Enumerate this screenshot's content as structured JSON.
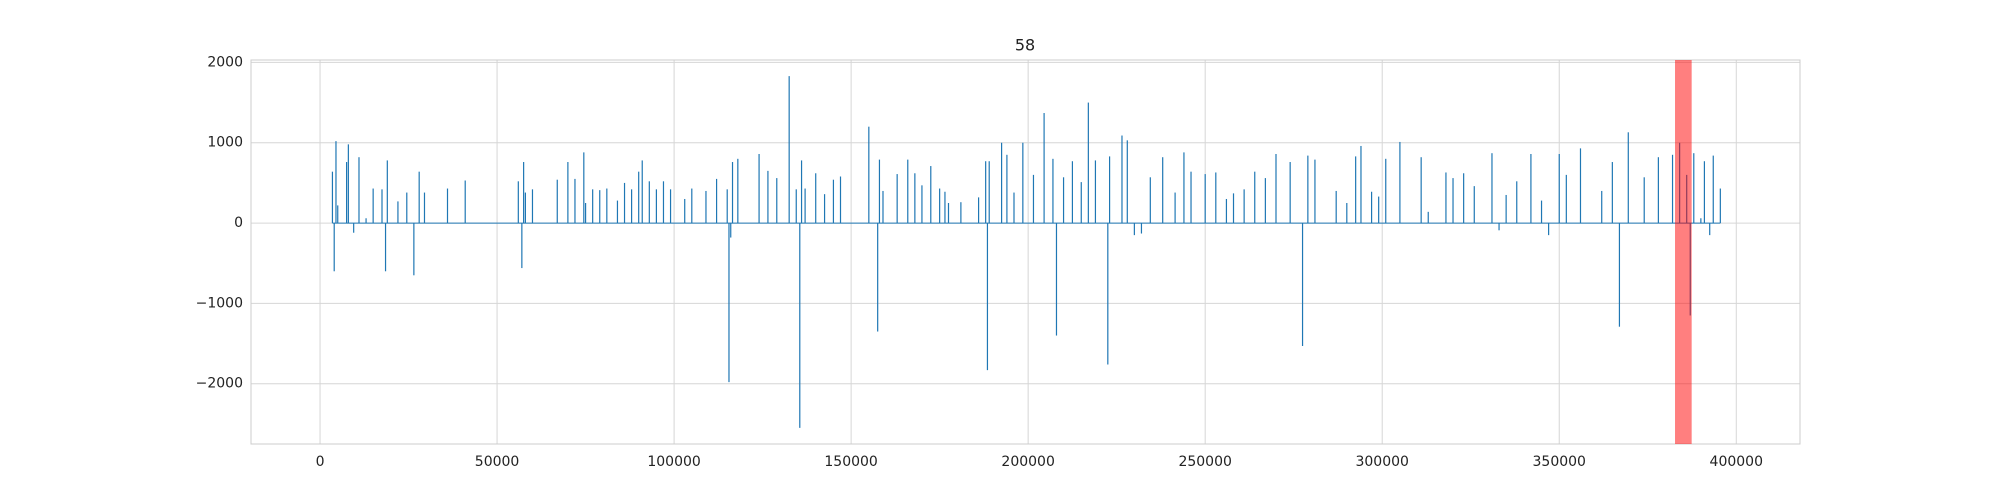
{
  "chart_data": {
    "type": "stem",
    "title": "58",
    "x": [
      3500,
      4000,
      4500,
      5000,
      7500,
      8000,
      9500,
      11000,
      13000,
      15000,
      17500,
      18500,
      19000,
      22000,
      24500,
      26500,
      28000,
      29500,
      36000,
      41000,
      56000,
      57000,
      57500,
      58000,
      60000,
      67000,
      70000,
      72000,
      74500,
      75000,
      77000,
      79000,
      81000,
      84000,
      86000,
      88000,
      90000,
      91000,
      93000,
      95000,
      97000,
      99000,
      103000,
      105000,
      109000,
      112000,
      115000,
      115500,
      116000,
      116500,
      118000,
      124000,
      126500,
      129000,
      132500,
      134500,
      135500,
      136000,
      137000,
      140000,
      142500,
      145000,
      147000,
      155000,
      157500,
      158000,
      159000,
      163000,
      166000,
      168000,
      170000,
      172500,
      175000,
      176500,
      177500,
      181000,
      186000,
      188000,
      188500,
      189000,
      192500,
      194000,
      196000,
      198500,
      201500,
      204500,
      207000,
      208000,
      210000,
      212500,
      215000,
      217000,
      219000,
      222500,
      223000,
      226500,
      228000,
      230000,
      232000,
      234500,
      238000,
      241500,
      244000,
      246000,
      250000,
      253000,
      256000,
      258000,
      261000,
      264000,
      267000,
      270000,
      274000,
      277500,
      279000,
      281000,
      287000,
      290000,
      292500,
      294000,
      297000,
      299000,
      301000,
      305000,
      311000,
      313000,
      318000,
      320000,
      323000,
      326000,
      331000,
      333000,
      335000,
      338000,
      342000,
      345000,
      347000,
      350000,
      352000,
      356000,
      362000,
      365000,
      367000,
      369500,
      374000,
      378000,
      382000,
      384000,
      386000,
      387000,
      388000,
      390000,
      391000,
      392500,
      393500,
      395500
    ],
    "values": [
      640,
      -600,
      1020,
      220,
      760,
      980,
      -120,
      820,
      60,
      430,
      420,
      -600,
      780,
      270,
      380,
      -650,
      640,
      380,
      430,
      530,
      520,
      -560,
      760,
      380,
      420,
      540,
      760,
      550,
      880,
      250,
      420,
      410,
      430,
      280,
      500,
      420,
      640,
      780,
      520,
      420,
      520,
      420,
      300,
      430,
      400,
      550,
      420,
      -1980,
      -180,
      760,
      800,
      860,
      650,
      560,
      1830,
      420,
      -2550,
      780,
      430,
      620,
      360,
      540,
      580,
      1200,
      -1350,
      790,
      400,
      610,
      790,
      620,
      470,
      710,
      430,
      390,
      250,
      260,
      320,
      770,
      -1830,
      770,
      1000,
      850,
      380,
      1000,
      600,
      1370,
      800,
      -1400,
      570,
      770,
      510,
      1500,
      780,
      -1760,
      830,
      1090,
      1030,
      -150,
      -130,
      570,
      820,
      380,
      880,
      640,
      610,
      630,
      300,
      370,
      420,
      640,
      560,
      860,
      760,
      -1530,
      840,
      790,
      400,
      250,
      830,
      960,
      390,
      330,
      800,
      1010,
      820,
      140,
      630,
      560,
      620,
      460,
      870,
      -90,
      350,
      520,
      860,
      280,
      -150,
      860,
      600,
      930,
      400,
      760,
      -1290,
      1130,
      570,
      820,
      850,
      1000,
      600,
      -1150,
      870,
      60,
      770,
      -150,
      840,
      430
    ],
    "color": "#1f77b4",
    "span": [
      382700,
      387400
    ],
    "span_color": "#ff0000",
    "xlim": [
      -19500,
      418000
    ],
    "ylim": [
      -2750,
      2030
    ],
    "xticks": [
      0,
      50000,
      100000,
      150000,
      200000,
      250000,
      300000,
      350000,
      400000
    ],
    "yticks": [
      {
        "value": -2000,
        "label": "−2000"
      },
      {
        "value": -1000,
        "label": "−1000"
      },
      0,
      1000,
      2000
    ],
    "grid": true
  }
}
